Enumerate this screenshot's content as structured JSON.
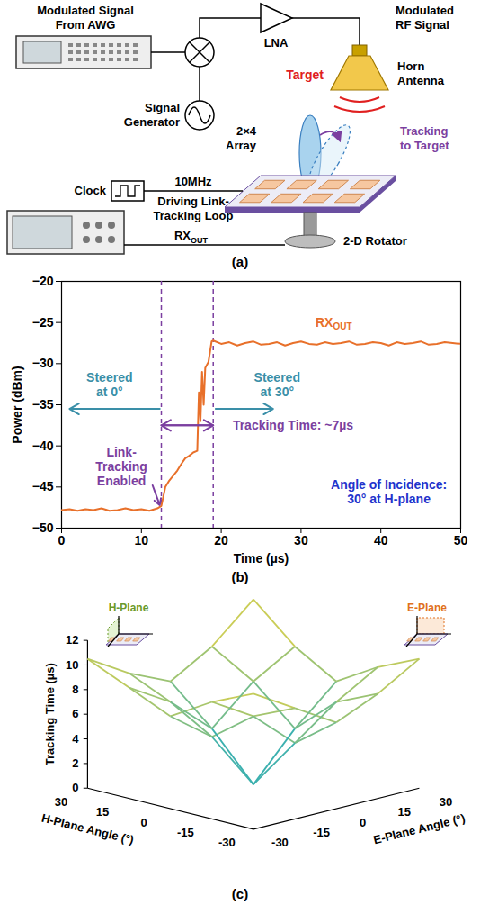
{
  "diagram": {
    "label": "(a)",
    "nodes": {
      "awg": [
        "Modulated Signal",
        "From AWG"
      ],
      "generator": [
        "Signal",
        "Generator"
      ],
      "lna": [
        "LNA"
      ],
      "rf": [
        "Modulated",
        "RF Signal"
      ],
      "horn": [
        "Horn",
        "Antenna"
      ],
      "target": [
        "Target"
      ],
      "array": [
        "2×4",
        "Array"
      ],
      "tracking": [
        "Tracking",
        "to Target"
      ],
      "clock": [
        "Clock"
      ],
      "freq": [
        "10MHz"
      ],
      "loop": [
        "Driving Link-",
        "Tracking Loop"
      ],
      "rxout": {
        "text": "RX",
        "sub": "OUT"
      },
      "rotator": [
        "2-D Rotator"
      ]
    }
  },
  "chart_data": [
    {
      "type": "line",
      "label": "(b)",
      "x_label": "Time (µs)",
      "y_label": "Power (dBm)",
      "xlim": [
        0,
        50
      ],
      "xticks": [
        0,
        10,
        20,
        30,
        40,
        50
      ],
      "ylim": [
        -50,
        -20
      ],
      "yticks": [
        -50,
        -45,
        -40,
        -35,
        -30,
        -25,
        -20
      ],
      "series": [
        {
          "color": "#e8702a",
          "x": [
            0,
            1,
            2,
            3,
            4,
            5,
            6,
            7,
            8,
            9,
            10,
            11,
            12,
            12.5,
            13,
            13.5,
            14,
            14.5,
            15,
            15.5,
            16,
            16.5,
            17,
            17.2,
            17.4,
            17.6,
            17.8,
            18,
            18.4,
            18.8,
            19,
            20,
            21,
            22,
            23,
            24,
            25,
            26,
            27,
            28,
            29,
            30,
            31,
            32,
            33,
            34,
            35,
            36,
            37,
            38,
            39,
            40,
            41,
            42,
            43,
            44,
            45,
            46,
            47,
            48,
            49,
            50
          ],
          "values": [
            -47.8,
            -47.7,
            -47.9,
            -47.7,
            -47.8,
            -47.6,
            -47.9,
            -47.8,
            -47.6,
            -47.8,
            -47.7,
            -47.9,
            -47.6,
            -47.3,
            -45.0,
            -44.2,
            -43.6,
            -43.0,
            -42.2,
            -41.5,
            -41.2,
            -40.8,
            -40.6,
            -33.5,
            -37.0,
            -31.0,
            -35.0,
            -30.5,
            -29.8,
            -27.3,
            -27.2,
            -27.6,
            -27.4,
            -27.8,
            -27.5,
            -27.3,
            -27.7,
            -27.6,
            -27.4,
            -27.8,
            -27.5,
            -27.3,
            -27.6,
            -27.7,
            -27.4,
            -27.6,
            -27.5,
            -27.3,
            -27.7,
            -27.6,
            -27.4,
            -27.5,
            -27.8,
            -27.4,
            -27.6,
            -27.5,
            -27.3,
            -27.7,
            -27.6,
            -27.4,
            -27.5,
            -27.6
          ]
        }
      ],
      "vlines": [
        12.5,
        19
      ],
      "annotations": [
        {
          "text": "RX",
          "sub": "OUT",
          "x": 34,
          "y": -25,
          "color": "#e8702a"
        },
        {
          "lines": [
            "Steered",
            "at 0°"
          ],
          "x": 6,
          "y": -32.5,
          "color": "#3a8fa8"
        },
        {
          "lines": [
            "Steered",
            "at 30°"
          ],
          "x": 27,
          "y": -32.5,
          "color": "#3a8fa8"
        },
        {
          "lines": [
            "Link-",
            "Tracking",
            "Enabled"
          ],
          "x": 7.5,
          "y": -42.5,
          "color": "#7b3fa0"
        },
        {
          "lines": [
            "Tracking Time: ~7µs"
          ],
          "x": 29,
          "y": -37.5,
          "color": "#7b3fa0"
        },
        {
          "lines": [
            "Angle of Incidence:",
            "30° at H-plane"
          ],
          "x": 41,
          "y": -45.5,
          "color": "#2233cc"
        }
      ],
      "arrows": [
        {
          "x1": 12.3,
          "y1": -35.5,
          "x2": 1,
          "y2": -35.5,
          "color": "#3a8fa8"
        },
        {
          "x1": 19.3,
          "y1": -35.5,
          "x2": 26.5,
          "y2": -35.5,
          "color": "#3a8fa8"
        },
        {
          "x1": 11.4,
          "y1": -44.8,
          "x2": 12.3,
          "y2": -47.2,
          "color": "#7b3fa0"
        },
        {
          "x1": 12.5,
          "y1": -37.5,
          "x2": 19,
          "y2": -37.5,
          "color": "#7b3fa0",
          "double": true
        }
      ]
    },
    {
      "type": "surface",
      "label": "(c)",
      "x_label": "H-Plane Angle (°)",
      "y_label": "E-Plane Angle (°)",
      "z_label": "Tracking Time (µs)",
      "x": [
        -30,
        -15,
        0,
        15,
        30
      ],
      "y": [
        -30,
        -15,
        0,
        15,
        30
      ],
      "values": [
        [
          11.0,
          9.0,
          7.0,
          8.5,
          10.5
        ],
        [
          9.5,
          7.5,
          4.5,
          7.0,
          9.0
        ],
        [
          7.5,
          5.0,
          0.3,
          4.0,
          7.0
        ],
        [
          9.0,
          7.0,
          4.0,
          7.0,
          9.0
        ],
        [
          10.5,
          8.5,
          7.0,
          9.0,
          12.0
        ]
      ],
      "xlim": [
        -30,
        30
      ],
      "xticks": [
        30,
        15,
        0,
        -15,
        -30
      ],
      "ylim": [
        -30,
        30
      ],
      "yticks": [
        -30,
        -15,
        0,
        15,
        30
      ],
      "zlim": [
        0,
        12
      ],
      "zticks": [
        0,
        2,
        4,
        6,
        8,
        10,
        12
      ],
      "insets": [
        "H-Plane",
        "E-Plane"
      ]
    }
  ]
}
